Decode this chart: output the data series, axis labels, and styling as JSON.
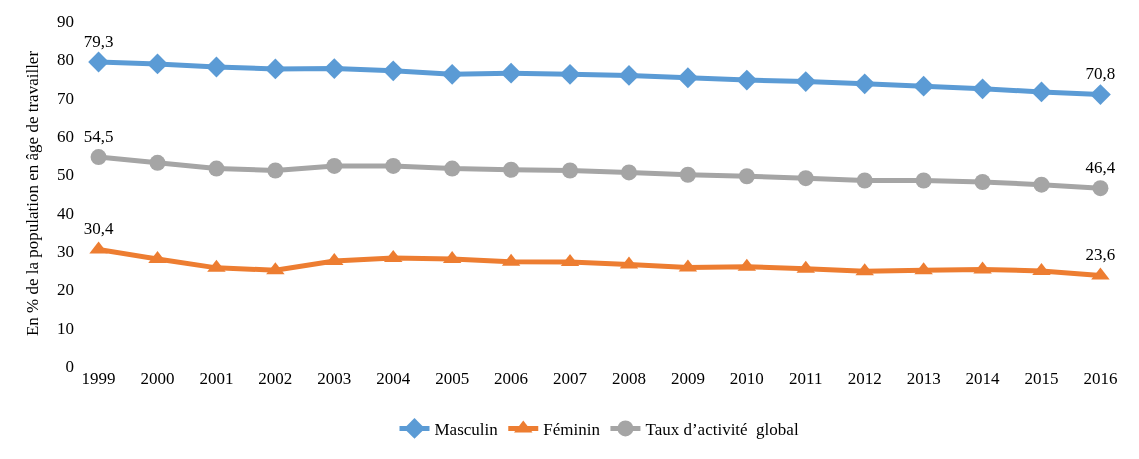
{
  "chart_data": {
    "type": "line",
    "ylabel": "En % de la population en âge de travailler",
    "categories": [
      "1999",
      "2000",
      "2001",
      "2002",
      "2003",
      "2004",
      "2005",
      "2006",
      "2007",
      "2008",
      "2009",
      "2010",
      "2011",
      "2012",
      "2013",
      "2014",
      "2015",
      "2016"
    ],
    "ylim": [
      0,
      90
    ],
    "yticks": [
      0,
      10,
      20,
      30,
      40,
      50,
      60,
      70,
      80,
      90
    ],
    "grid": false,
    "legend": "bottom",
    "series": [
      {
        "name": "Masculin",
        "color": "#5b9bd5",
        "marker": "diamond",
        "values": [
          79.3,
          78.8,
          78.0,
          77.5,
          77.6,
          77.0,
          76.1,
          76.4,
          76.1,
          75.8,
          75.2,
          74.6,
          74.2,
          73.6,
          73.0,
          72.3,
          71.5,
          70.8
        ],
        "value_labels": [
          "79,3",
          null,
          null,
          null,
          null,
          null,
          null,
          null,
          null,
          null,
          null,
          null,
          null,
          null,
          null,
          null,
          null,
          "70,8"
        ]
      },
      {
        "name": "Féminin",
        "color": "#ed7d31",
        "marker": "triangle",
        "values": [
          30.4,
          27.9,
          25.6,
          25.0,
          27.4,
          28.2,
          27.9,
          27.2,
          27.1,
          26.5,
          25.7,
          25.9,
          25.4,
          24.7,
          25.0,
          25.2,
          24.8,
          23.6
        ],
        "value_labels": [
          "30,4",
          null,
          null,
          null,
          null,
          null,
          null,
          null,
          null,
          null,
          null,
          null,
          null,
          null,
          null,
          null,
          null,
          "23,6"
        ]
      },
      {
        "name": "Taux d’activité  global",
        "color": "#a5a5a5",
        "marker": "circle",
        "values": [
          54.5,
          53.0,
          51.5,
          51.0,
          52.2,
          52.2,
          51.5,
          51.2,
          51.0,
          50.5,
          49.9,
          49.5,
          49.0,
          48.4,
          48.4,
          48.0,
          47.3,
          46.4
        ],
        "value_labels": [
          "54,5",
          null,
          null,
          null,
          null,
          null,
          null,
          null,
          null,
          null,
          null,
          null,
          null,
          null,
          null,
          null,
          null,
          "46,4"
        ]
      }
    ]
  }
}
